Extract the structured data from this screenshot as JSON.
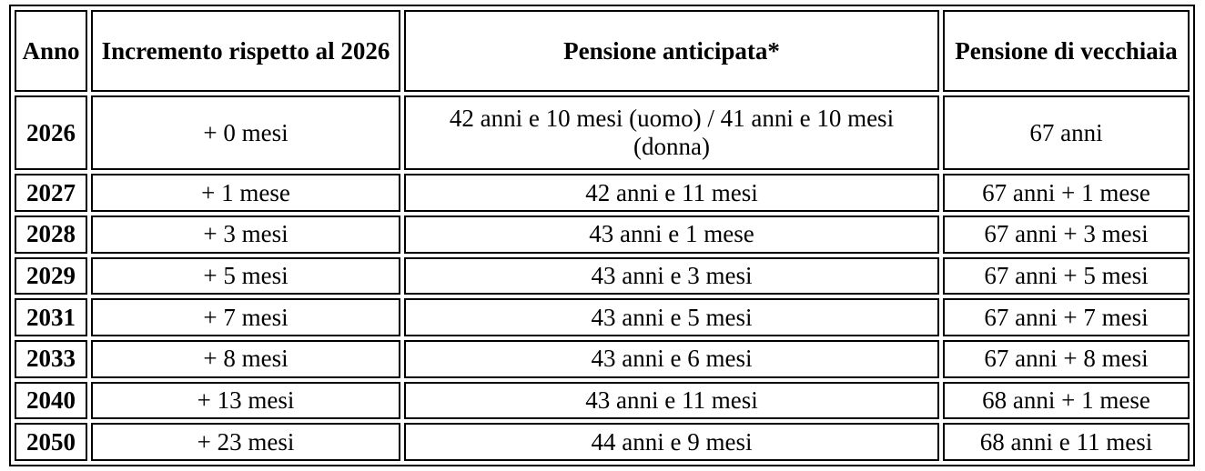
{
  "table": {
    "headers": [
      "Anno",
      "Incremento rispetto al 2026",
      "Pensione anticipata*",
      "Pensione di vecchiaia"
    ],
    "rows": [
      [
        "2026",
        "+ 0 mesi",
        "42 anni e 10 mesi (uomo) / 41 anni e 10 mesi (donna)",
        "67 anni"
      ],
      [
        "2027",
        "+ 1 mese",
        "42 anni e 11 mesi",
        "67 anni + 1 mese"
      ],
      [
        "2028",
        "+ 3 mesi",
        "43 anni e 1 mese",
        "67 anni + 3 mesi"
      ],
      [
        "2029",
        "+ 5 mesi",
        "43 anni e 3 mesi",
        "67 anni + 5 mesi"
      ],
      [
        "2031",
        "+ 7 mesi",
        "43 anni e 5 mesi",
        "67 anni + 7 mesi"
      ],
      [
        "2033",
        "+ 8 mesi",
        "43 anni e 6 mesi",
        "67 anni + 8 mesi"
      ],
      [
        "2040",
        "+ 13 mesi",
        "43 anni e 11 mesi",
        "68 anni + 1 mese"
      ],
      [
        "2050",
        "+ 23 mesi",
        "44 anni e 9 mesi",
        "68 anni e 11 mesi"
      ]
    ]
  }
}
